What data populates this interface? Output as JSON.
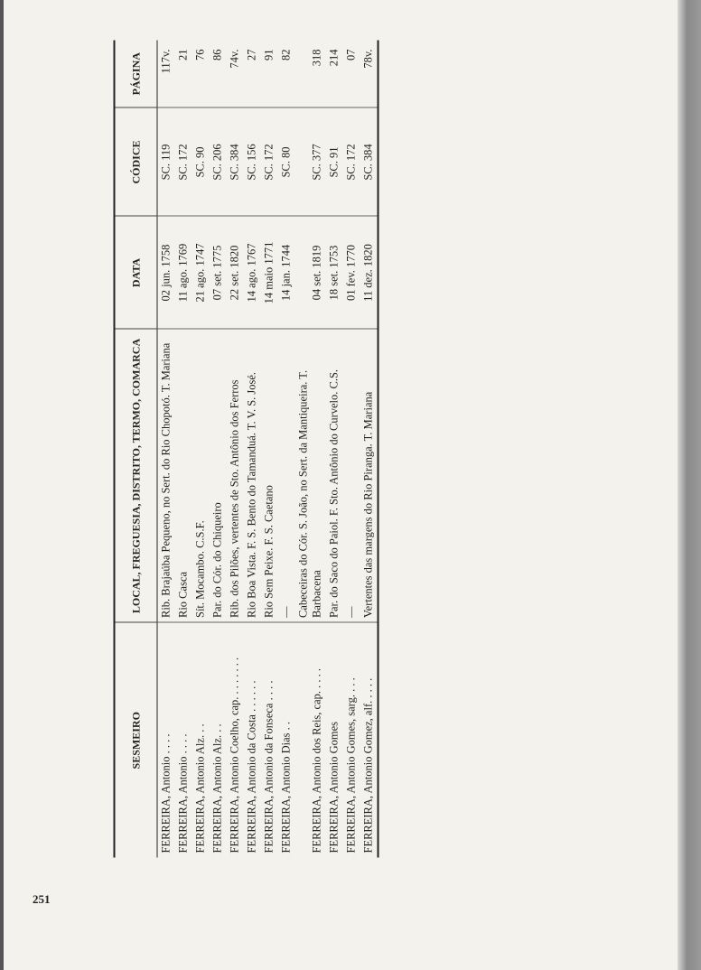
{
  "header": {
    "columns": [
      "SESMEIRO",
      "LOCAL, FREGUESIA, DISTRITO, TERMO, COMARCA",
      "DATA",
      "CÓDICE",
      "PÁGINA"
    ]
  },
  "table": {
    "rows": [
      [
        "FERREIRA, Antonio . . . .",
        "Rib. Brajaúba Pequeno, no Sert. do Rio Chopotó. T. Mariana",
        "02 jun. 1758",
        "SC. 119",
        "117v."
      ],
      [
        "FERREIRA, Antonio . . . .",
        "Rio Casca",
        "11 ago. 1769",
        "SC. 172",
        "21"
      ],
      [
        "FERREIRA, Antonio Alz. . .",
        "Sít. Mocambo. C.S.F.",
        "21 ago. 1747",
        "SC. 90",
        "76"
      ],
      [
        "FERREIRA, Antonio Alz. . .",
        "Par. do Cór. do Chiqueiro",
        "07 set. 1775",
        "SC. 206",
        "86"
      ],
      [
        "FERREIRA, Antonio Coelho, cap. . . . . . . .",
        "Rib. dos Pilões, vertentes de Sto. Antônio dos Ferros",
        "22 set. 1820",
        "SC. 384",
        "74v."
      ],
      [
        "FERREIRA, Antonio da Costa . . . . . .",
        "Rio Boa Vista. F. S. Bento do Tamanduá. T. V. S. José.",
        "14 ago. 1767",
        "SC. 156",
        "27"
      ],
      [
        "FERREIRA, Antonio da Fonseca . . . .",
        "Rio Sem Peixe. F. S. Caetano",
        "14 maio 1771",
        "SC. 172",
        "91"
      ],
      [
        "FERREIRA, Antonio Dias . .",
        "—",
        "14 jan. 1744",
        "SC. 80",
        "82"
      ],
      [
        "FERREIRA, Antonio dos Reis, cap. . . . .",
        "Cabeceiras do Cór. S. João, no Sert. da Mantiqueira. T. Barbacena",
        "04 set. 1819",
        "SC. 377",
        "318"
      ],
      [
        "FERREIRA, Antonio Gomes",
        "Par. do Saco do Paiol. F. Sto. Antônio do Curvelo. C.S.",
        "18 set. 1753",
        "SC. 91",
        "214"
      ],
      [
        "FERREIRA, Antonio Gomes, sarg. . . .",
        "—",
        "01 fev. 1770",
        "SC. 172",
        "07"
      ],
      [
        "FERREIRA, Antonio Gomez, alf. . . . .",
        "Vertentes das margens do Rio Piranga. T. Mariana",
        "11 dez. 1820",
        "SC. 384",
        "78v."
      ]
    ]
  },
  "page_number": "251"
}
